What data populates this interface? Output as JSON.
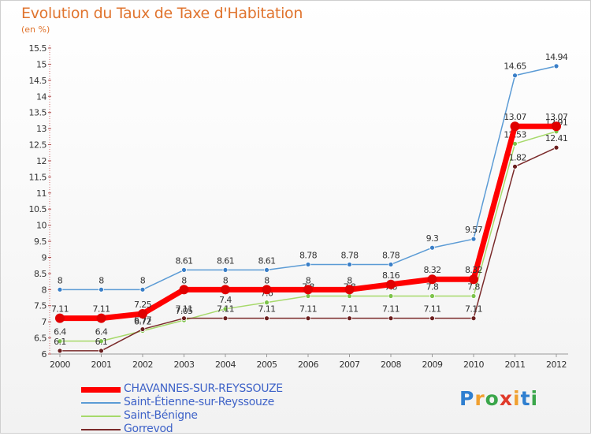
{
  "title": "Evolution du Taux de Taxe d'Habitation",
  "subtitle": "(en %)",
  "logo": {
    "text": "Proxiti",
    "letters": [
      {
        "ch": "P",
        "color": "#2f7fd0"
      },
      {
        "ch": "r",
        "color": "#f0a030"
      },
      {
        "ch": "o",
        "color": "#3aa64a"
      },
      {
        "ch": "x",
        "color": "#e03a2a"
      },
      {
        "ch": "i",
        "color": "#f0a030"
      },
      {
        "ch": "t",
        "color": "#2f7fd0"
      },
      {
        "ch": "i",
        "color": "#3aa64a"
      }
    ]
  },
  "chart_data": {
    "type": "line",
    "title": "Evolution du Taux de Taxe d'Habitation",
    "ylabel": "(en %)",
    "xlabel": "",
    "ylim": [
      6,
      15.5
    ],
    "yticks": [
      6,
      6.5,
      7,
      7.5,
      8,
      8.5,
      9,
      9.5,
      10,
      10.5,
      11,
      11.5,
      12,
      12.5,
      13,
      13.5,
      14,
      14.5,
      15,
      15.5
    ],
    "ytick_labels": [
      "6",
      "6.5",
      "7",
      "7.5",
      "8",
      "8.5",
      "9",
      "9.5",
      "10",
      "10.5",
      "11",
      "11.5",
      "12",
      "12.5",
      "13",
      "13.5",
      "14",
      "14.5",
      "15",
      "15.5"
    ],
    "x": [
      "2000",
      "2001",
      "2002",
      "2003",
      "2004",
      "2005",
      "2006",
      "2007",
      "2008",
      "2009",
      "2010",
      "2011",
      "2012"
    ],
    "grid": false,
    "legend": "bottom-left",
    "series": [
      {
        "name": "Saint-Étienne-sur-Reyssouze",
        "color": "#5b9bd5",
        "marker": "#3a7fc8",
        "values": [
          8,
          8,
          8,
          8.61,
          8.61,
          8.61,
          8.78,
          8.78,
          8.78,
          9.3,
          9.57,
          14.65,
          14.94
        ],
        "labels": [
          "8",
          "8",
          "8",
          "8.61",
          "8.61",
          "8.61",
          "8.78",
          "8.78",
          "8.78",
          "9.3",
          "9.57",
          "14.65",
          "14.94"
        ]
      },
      {
        "name": "Saint-Bénigne",
        "color": "#a6d96a",
        "marker": "#7cc34a",
        "values": [
          6.4,
          6.4,
          6.72,
          7.05,
          7.4,
          7.6,
          7.8,
          7.8,
          7.8,
          7.8,
          7.8,
          12.53,
          12.91
        ],
        "labels": [
          "6.4",
          "6.4",
          "6.72",
          "7.05",
          "7.4",
          "7.6",
          "7.8",
          "7.8",
          "7.8",
          "7.8",
          "7.8",
          "12.53",
          "12.91"
        ]
      },
      {
        "name": "Gorrevod",
        "color": "#7a2a2a",
        "marker": "#6b1f1f",
        "values": [
          6.1,
          6.1,
          6.77,
          7.11,
          7.11,
          7.11,
          7.11,
          7.11,
          7.11,
          7.11,
          7.11,
          11.82,
          12.41
        ],
        "labels": [
          "6.1",
          "6.1",
          "6.77",
          "7.11",
          "7.11",
          "7.11",
          "7.11",
          "7.11",
          "7.11",
          "7.11",
          "7.11",
          "11.82",
          "12.41"
        ]
      },
      {
        "name": "CHAVANNES-SUR-REYSSOUZE",
        "color": "#ff0000",
        "marker": "#e00000",
        "values": [
          7.11,
          7.11,
          7.25,
          8,
          8,
          8,
          8,
          8,
          8.16,
          8.32,
          8.32,
          13.07,
          13.07
        ],
        "labels": [
          "7.11",
          "7.11",
          "7.25",
          "8",
          "8",
          "8",
          "8",
          "8",
          "8.16",
          "8.32",
          "8.32",
          "13.07",
          "13.07"
        ]
      }
    ]
  },
  "legend_items": [
    {
      "name": "CHAVANNES-SUR-REYSSOUZE",
      "color": "#ff0000"
    },
    {
      "name": "Saint-Étienne-sur-Reyssouze",
      "color": "#5b9bd5"
    },
    {
      "name": "Saint-Bénigne",
      "color": "#a6d96a"
    },
    {
      "name": "Gorrevod",
      "color": "#7a2a2a"
    }
  ]
}
